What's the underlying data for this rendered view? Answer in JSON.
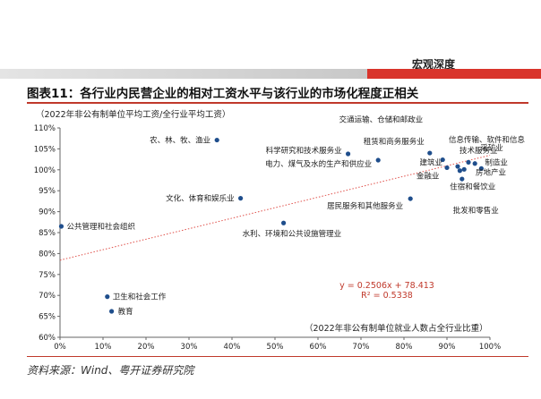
{
  "header": {
    "section_label": "宏观深度"
  },
  "figure": {
    "title": "图表11：各行业内民营企业的相对工资水平与该行业的市场化程度正相关"
  },
  "source": {
    "note": "资料来源：Wind、粤开证券研究院"
  },
  "colors": {
    "accent_red": "#d9342b",
    "point": "#1f4e8c",
    "trend": "#e0504a",
    "equation": "#c0392b"
  },
  "chart_data": {
    "type": "scatter",
    "ylabel": "（2022年非公有制单位平均工资/全行业平均工资）",
    "xlabel": "（2022年非公有制单位就业人数占全行业比重）",
    "xlim": [
      0,
      100
    ],
    "ylim": [
      60,
      110
    ],
    "x_ticks": [
      "0%",
      "10%",
      "20%",
      "30%",
      "40%",
      "50%",
      "60%",
      "70%",
      "80%",
      "90%",
      "100%"
    ],
    "y_ticks": [
      "60%",
      "65%",
      "70%",
      "75%",
      "80%",
      "85%",
      "90%",
      "95%",
      "100%",
      "105%",
      "110%"
    ],
    "points": [
      {
        "label": "公共管理和社会组织",
        "x": 0.3,
        "y": 86.5
      },
      {
        "label": "卫生和社会工作",
        "x": 11,
        "y": 69.7
      },
      {
        "label": "教育",
        "x": 12,
        "y": 66.2
      },
      {
        "label": "农、林、牧、渔业",
        "x": 36.5,
        "y": 107.1
      },
      {
        "label": "文化、体育和娱乐业",
        "x": 42,
        "y": 93.2
      },
      {
        "label": "水利、环境和公共设施管理业",
        "x": 52,
        "y": 87.3
      },
      {
        "label": "科学研究和技术服务业",
        "x": 67,
        "y": 103.8
      },
      {
        "label": "电力、煤气及水的生产和供应业",
        "x": 74,
        "y": 102.3
      },
      {
        "label": "居民服务和其他服务业",
        "x": 81.5,
        "y": 93.1
      },
      {
        "label": "租赁和商务服务业",
        "x": 86,
        "y": 104
      },
      {
        "label": "交通运输、仓储和邮政业",
        "x": 89,
        "y": 102.4
      },
      {
        "label": "建筑业",
        "x": 90,
        "y": 100.5
      },
      {
        "label": "信息传输、软件和信息技术服务业",
        "x": 92.5,
        "y": 100.8
      },
      {
        "label": "金融业",
        "x": 93,
        "y": 99.8
      },
      {
        "label": "住宿和餐饮业",
        "x": 94,
        "y": 100.1
      },
      {
        "label": "采矿业",
        "x": 96.5,
        "y": 101.5
      },
      {
        "label": "制造业",
        "x": 98,
        "y": 100.3
      },
      {
        "label": "房地产业",
        "x": 95,
        "y": 101.8
      },
      {
        "label": "批发和零售业",
        "x": 93.5,
        "y": 97.8
      }
    ],
    "trendline": {
      "slope": 0.2506,
      "intercept": 78.413,
      "x_range": [
        0,
        100
      ]
    },
    "equation_text": "y = 0.2506x + 78.413",
    "r2_text": "R² = 0.5338"
  }
}
